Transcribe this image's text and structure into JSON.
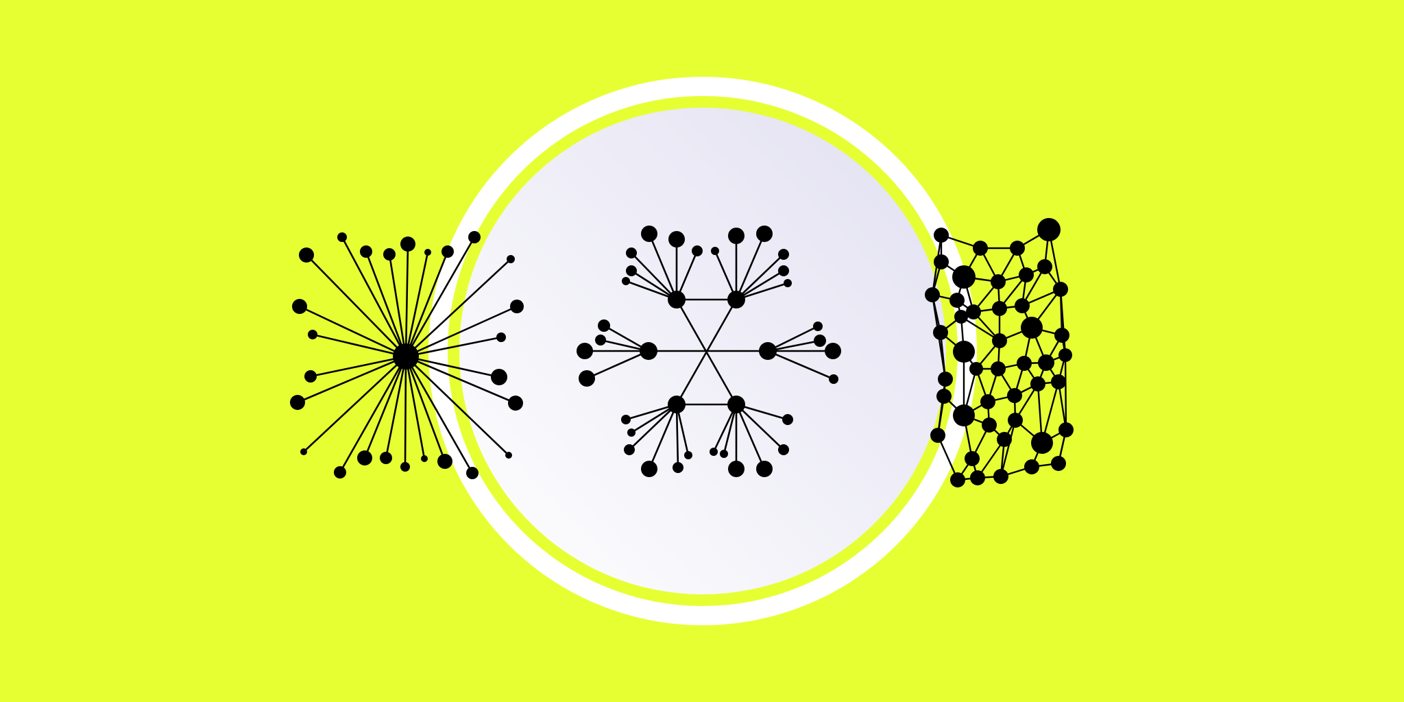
{
  "colors": {
    "background": "#e6ff33",
    "circle_outer": "#ffffff",
    "circle_ring": "#e6ff33",
    "circle_gradient_start": "#e2e0f1",
    "circle_gradient_end": "#ffffff",
    "node": "#000000",
    "edge": "#000000"
  },
  "diagrams": [
    {
      "name": "centralized-network",
      "description_word": "hub-and-spoke"
    },
    {
      "name": "decentralized-network",
      "description_word": "multi-hub"
    },
    {
      "name": "distributed-network",
      "description_word": "mesh"
    }
  ]
}
